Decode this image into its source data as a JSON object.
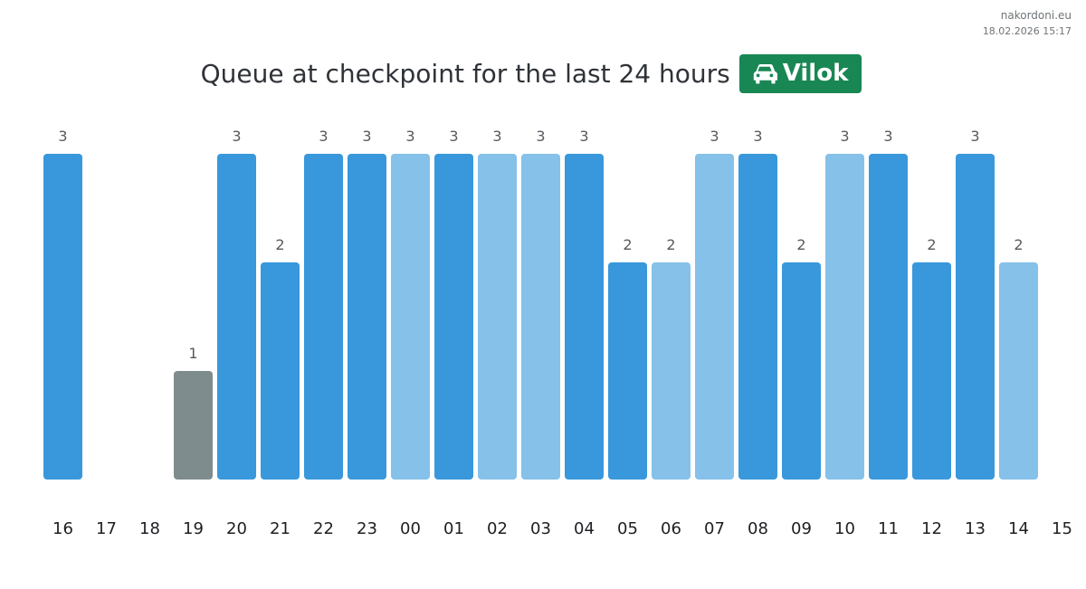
{
  "site": {
    "name": "nakordoni.eu",
    "timestamp": "18.02.2026 15:17"
  },
  "title": "Queue at checkpoint for the last 24 hours",
  "badge": {
    "label": "Vilok",
    "icon": "car-icon",
    "color": "#198754"
  },
  "colors": {
    "dark": "#3898db",
    "light": "#85c1e9",
    "gray": "#7f8c8d"
  },
  "chart_data": {
    "type": "bar",
    "title": "Queue at checkpoint for the last 24 hours",
    "xlabel": "",
    "ylabel": "",
    "grid": false,
    "ylim": [
      0,
      3
    ],
    "categories": [
      "16",
      "17",
      "18",
      "19",
      "20",
      "21",
      "22",
      "23",
      "00",
      "01",
      "02",
      "03",
      "04",
      "05",
      "06",
      "07",
      "08",
      "09",
      "10",
      "11",
      "12",
      "13",
      "14",
      "15"
    ],
    "values": [
      3,
      null,
      null,
      1,
      3,
      2,
      3,
      3,
      3,
      3,
      3,
      3,
      3,
      2,
      2,
      3,
      3,
      2,
      3,
      3,
      2,
      3,
      2,
      null
    ],
    "bar_colors": [
      "dark",
      null,
      null,
      "gray",
      "dark",
      "dark",
      "dark",
      "dark",
      "light",
      "dark",
      "light",
      "light",
      "dark",
      "dark",
      "light",
      "light",
      "dark",
      "dark",
      "light",
      "dark",
      "dark",
      "dark",
      "light",
      null
    ]
  }
}
